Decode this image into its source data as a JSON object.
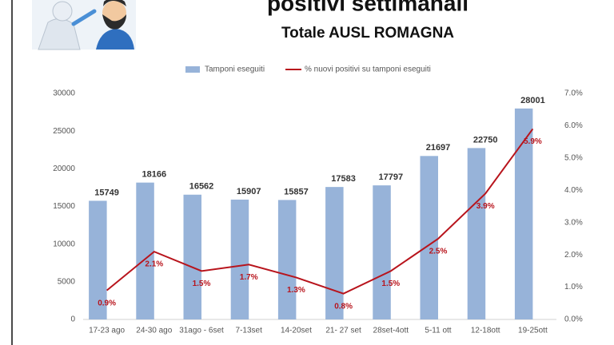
{
  "chart_data": {
    "type": "bar_line",
    "title": "positivi settimanali",
    "subtitle": "Totale AUSL ROMAGNA",
    "categories": [
      "17-23 ago",
      "24-30 ago",
      "31ago - 6set",
      "7-13set",
      "14-20set",
      "21- 27 set",
      "28set-4ott",
      "5-11 ott",
      "12-18ott",
      "19-25ott"
    ],
    "series": [
      {
        "name": "Tamponi eseguiti",
        "color": "#97b3d9",
        "values": [
          15749,
          18166,
          16562,
          15907,
          15857,
          17583,
          17797,
          21697,
          22750,
          28001
        ]
      },
      {
        "name": "% nuovi positivi su tamponi eseguiti",
        "color": "#b8141c",
        "axis": "y2",
        "values": [
          0.9,
          2.1,
          1.5,
          1.7,
          1.3,
          0.8,
          1.5,
          2.5,
          3.9,
          5.9
        ],
        "value_labels": [
          "0.9%",
          "2.1%",
          "1.5%",
          "1.7%",
          "1.3%",
          "0.8%",
          "1.5%",
          "2.5%",
          "3.9%",
          "5.9%"
        ]
      }
    ],
    "ylim": [
      0,
      30000
    ],
    "yticks": [
      0,
      5000,
      10000,
      15000,
      20000,
      25000,
      30000
    ],
    "y2lim": [
      0,
      7
    ],
    "y2ticks": [
      {
        "value": 0,
        "label": "0.0%"
      },
      {
        "value": 1,
        "label": "1.0%"
      },
      {
        "value": 2,
        "label": "2.0%"
      },
      {
        "value": 3,
        "label": "3.0%"
      },
      {
        "value": 4,
        "label": "4.0%"
      },
      {
        "value": 5,
        "label": "5.0%"
      },
      {
        "value": 6,
        "label": "6.0%"
      },
      {
        "value": 7,
        "label": "7.0%"
      }
    ],
    "grid": false,
    "legend": "top"
  }
}
